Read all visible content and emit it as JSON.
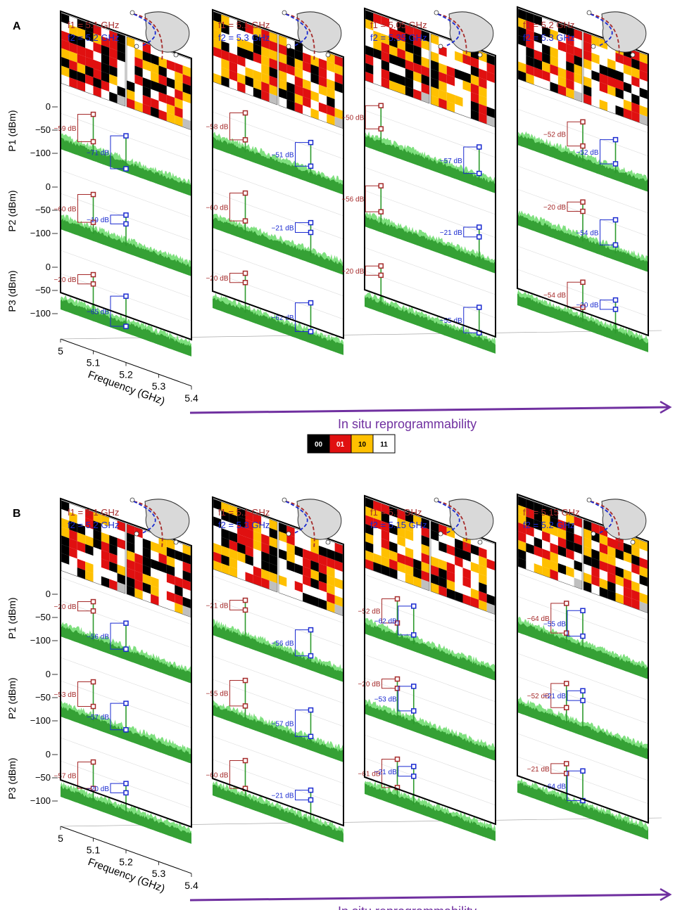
{
  "legend": [
    {
      "code": "00",
      "color": "#000000",
      "text_color": "#ffffff"
    },
    {
      "code": "01",
      "color": "#e01010",
      "text_color": "#ffffff"
    },
    {
      "code": "10",
      "color": "#ffc000",
      "text_color": "#000000"
    },
    {
      "code": "11",
      "color": "#ffffff",
      "text_color": "#000000"
    }
  ],
  "colors": {
    "f1": "#a52a2a",
    "f2": "#1a2ad0",
    "spectrum": "#2d9a2d",
    "spectrum_light": "#7fe07f",
    "arrow": "#7030a0",
    "gray": "#bfbfbf"
  },
  "chart_data": [
    {
      "type": "line",
      "panel_label": "A",
      "xlabel": "Frequency (GHz)",
      "x_ticks": [
        "5",
        "5.1",
        "5.2",
        "5.3",
        "5.4"
      ],
      "xlim": [
        5,
        5.4
      ],
      "ylim": [
        -120,
        0
      ],
      "y_ticks": [
        "0",
        "−50",
        "−100"
      ],
      "ylabels": [
        "P1 (dBm)",
        "P2 (dBm)",
        "P3 (dBm)"
      ],
      "arrow_label": "In situ reprogrammability",
      "configs": [
        {
          "f1": "f1 = 5.1 GHz",
          "f2": "f2 = 5.2 GHz",
          "f1_ghz": 5.1,
          "f2_ghz": 5.2,
          "rows": [
            {
              "d1": "−59 dB",
              "d2": "−71 dB",
              "hi1": -27,
              "lo1": -86,
              "hi2": -48,
              "lo2": -119
            },
            {
              "d1": "−60 dB",
              "d2": "−19 dB",
              "hi1": -27,
              "lo1": -87,
              "hi2": -46,
              "lo2": -65
            },
            {
              "d1": "−20 dB",
              "d2": "−65 dB",
              "hi1": -27,
              "lo1": -47,
              "hi2": -48,
              "lo2": -113
            }
          ]
        },
        {
          "f1": "f1 = 5.1 GHz",
          "f2": "f2 = 5.3 GHz",
          "f1_ghz": 5.1,
          "f2_ghz": 5.3,
          "rows": [
            {
              "d1": "−58 dB",
              "d2": "−51 dB",
              "hi1": -27,
              "lo1": -85,
              "hi2": -40,
              "lo2": -91
            },
            {
              "d1": "−60 dB",
              "d2": "−21 dB",
              "hi1": -27,
              "lo1": -87,
              "hi2": -40,
              "lo2": -61
            },
            {
              "d1": "−20 dB",
              "d2": "−62 dB",
              "hi1": -27,
              "lo1": -47,
              "hi2": -40,
              "lo2": -102
            }
          ]
        },
        {
          "f1": "f1 = 5.05 GHz",
          "f2": "f2 = 5.35 GHz",
          "f1_ghz": 5.05,
          "f2_ghz": 5.35,
          "rows": [
            {
              "d1": "−50 dB",
              "d2": "−57 dB",
              "hi1": -27,
              "lo1": -77,
              "hi2": -40,
              "lo2": -97
            },
            {
              "d1": "−56 dB",
              "d2": "−21 dB",
              "hi1": -27,
              "lo1": -83,
              "hi2": -40,
              "lo2": -61
            },
            {
              "d1": "−20 dB",
              "d2": "−55 dB",
              "hi1": -27,
              "lo1": -47,
              "hi2": -40,
              "lo2": -95
            }
          ]
        },
        {
          "f1": "f1 = 5.2 GHz",
          "f2": "f2 = 5.3 GHz",
          "f1_ghz": 5.2,
          "f2_ghz": 5.3,
          "rows": [
            {
              "d1": "−52 dB",
              "d2": "−52 dB",
              "hi1": -27,
              "lo1": -79,
              "hi2": -40,
              "lo2": -92
            },
            {
              "d1": "−20 dB",
              "d2": "−54 dB",
              "hi1": -27,
              "lo1": -47,
              "hi2": -40,
              "lo2": -94
            },
            {
              "d1": "−54 dB",
              "d2": "−20 dB",
              "hi1": -27,
              "lo1": -81,
              "hi2": -40,
              "lo2": -60
            }
          ]
        }
      ]
    },
    {
      "type": "line",
      "panel_label": "B",
      "xlabel": "Frequency (GHz)",
      "x_ticks": [
        "5",
        "5.1",
        "5.2",
        "5.3",
        "5.4"
      ],
      "xlim": [
        5,
        5.4
      ],
      "ylim": [
        -120,
        0
      ],
      "y_ticks": [
        "0",
        "−50",
        "−100"
      ],
      "ylabels": [
        "P1 (dBm)",
        "P2 (dBm)",
        "P3 (dBm)"
      ],
      "arrow_label": "In situ reprogrammability",
      "configs": [
        {
          "f1": "f1 = 5.1 GHz",
          "f2": "f2 = 5.2 GHz",
          "f1_ghz": 5.1,
          "f2_ghz": 5.2,
          "rows": [
            {
              "d1": "−20 dB",
              "d2": "−56 dB",
              "hi1": -27,
              "lo1": -47,
              "hi2": -48,
              "lo2": -104
            },
            {
              "d1": "−53 dB",
              "d2": "−57 dB",
              "hi1": -27,
              "lo1": -80,
              "hi2": -48,
              "lo2": -105
            },
            {
              "d1": "−57 dB",
              "d2": "−20 dB",
              "hi1": -27,
              "lo1": -84,
              "hi2": -48,
              "lo2": -68
            }
          ]
        },
        {
          "f1": "f1 = 5.1 GHz",
          "f2": "f2 = 5.3 GHz",
          "f1_ghz": 5.1,
          "f2_ghz": 5.3,
          "rows": [
            {
              "d1": "−21 dB",
              "d2": "−56 dB",
              "hi1": -27,
              "lo1": -48,
              "hi2": -40,
              "lo2": -96
            },
            {
              "d1": "−55 dB",
              "d2": "−57 dB",
              "hi1": -27,
              "lo1": -82,
              "hi2": -40,
              "lo2": -97
            },
            {
              "d1": "−60 dB",
              "d2": "−21 dB",
              "hi1": -27,
              "lo1": -87,
              "hi2": -40,
              "lo2": -61
            }
          ]
        },
        {
          "f1": "f1 = 5.1 GHz",
          "f2": "f2 = 5.15 GHz",
          "f1_ghz": 5.1,
          "f2_ghz": 5.15,
          "rows": [
            {
              "d1": "−52 dB",
              "d2": "−62 dB",
              "hi1": -27,
              "lo1": -79,
              "hi2": -30,
              "lo2": -92
            },
            {
              "d1": "−20 dB",
              "d2": "−53 dB",
              "hi1": -27,
              "lo1": -47,
              "hi2": -30,
              "lo2": -83
            },
            {
              "d1": "−61 dB",
              "d2": "−21 dB",
              "hi1": -27,
              "lo1": -88,
              "hi2": -30,
              "lo2": -51
            }
          ]
        },
        {
          "f1": "f1 = 5.15 GHz",
          "f2": "f2 = 5.2 GHz",
          "f1_ghz": 5.15,
          "f2_ghz": 5.2,
          "rows": [
            {
              "d1": "−64 dB",
              "d2": "−55 dB",
              "hi1": -27,
              "lo1": -91,
              "hi2": -30,
              "lo2": -85
            },
            {
              "d1": "−52 dB",
              "d2": "−21 dB",
              "hi1": -27,
              "lo1": -79,
              "hi2": -30,
              "lo2": -51
            },
            {
              "d1": "−21 dB",
              "d2": "−64 dB",
              "hi1": -27,
              "lo1": -48,
              "hi2": -30,
              "lo2": -94
            }
          ]
        }
      ]
    }
  ]
}
